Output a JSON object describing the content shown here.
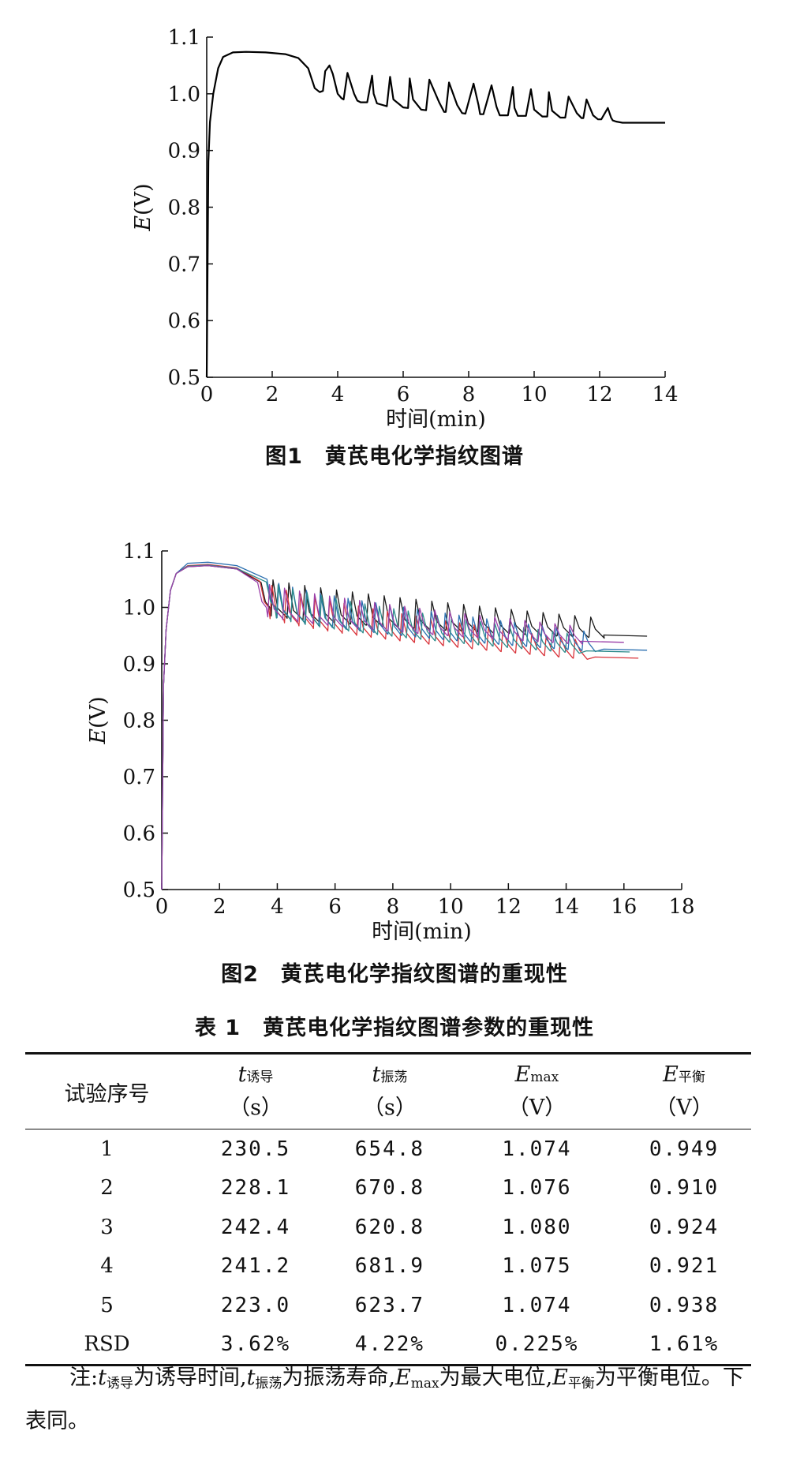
{
  "chart_data": [
    {
      "type": "line",
      "title": "图1　黄芪电化学指纹图谱",
      "xlabel": "时间(min)",
      "ylabel": "E(V)",
      "xlim": [
        0,
        14
      ],
      "ylim": [
        0.5,
        1.1
      ],
      "xticks": [
        "0",
        "2",
        "4",
        "6",
        "8",
        "10",
        "12",
        "14"
      ],
      "yticks": [
        "0.5",
        "0.6",
        "0.7",
        "0.8",
        "0.9",
        "1.0",
        "1.1"
      ],
      "series": [
        {
          "color": "#000000",
          "x": [
            0.0,
            0.05,
            0.1,
            0.2,
            0.35,
            0.5,
            0.8,
            1.2,
            1.8,
            2.4,
            2.8,
            3.1,
            3.3,
            3.45,
            3.55,
            3.62,
            3.75,
            3.85,
            4.0,
            4.12,
            4.18,
            4.3,
            4.5,
            4.6,
            4.7,
            4.9,
            5.05,
            5.1,
            5.2,
            5.5,
            5.6,
            5.7,
            6.0,
            6.15,
            6.2,
            6.3,
            6.55,
            6.7,
            6.8,
            7.1,
            7.25,
            7.3,
            7.4,
            7.65,
            7.8,
            7.9,
            8.15,
            8.3,
            8.35,
            8.45,
            8.7,
            8.85,
            8.95,
            9.2,
            9.35,
            9.4,
            9.5,
            9.75,
            9.9,
            10.0,
            10.25,
            10.4,
            10.45,
            10.55,
            10.8,
            10.95,
            11.05,
            11.3,
            11.45,
            11.5,
            11.6,
            11.8,
            11.95,
            12.05,
            12.25,
            12.35,
            12.4,
            12.5,
            12.7,
            12.9,
            13.2,
            14.0
          ],
          "y": [
            0.5,
            0.88,
            0.95,
            1.0,
            1.045,
            1.065,
            1.073,
            1.074,
            1.073,
            1.07,
            1.063,
            1.045,
            1.01,
            1.003,
            1.005,
            1.04,
            1.05,
            1.035,
            1.0,
            0.992,
            0.99,
            1.037,
            1.0,
            0.988,
            0.985,
            0.985,
            1.032,
            1.0,
            0.983,
            0.978,
            1.03,
            0.99,
            0.976,
            0.975,
            1.027,
            0.99,
            0.972,
            0.971,
            1.025,
            0.985,
            0.968,
            0.968,
            1.02,
            0.98,
            0.966,
            0.965,
            1.018,
            0.98,
            0.964,
            0.964,
            1.015,
            0.977,
            0.962,
            0.962,
            1.012,
            0.975,
            0.961,
            0.961,
            1.008,
            0.972,
            0.96,
            0.96,
            1.003,
            0.97,
            0.958,
            0.958,
            0.995,
            0.966,
            0.957,
            0.957,
            0.99,
            0.962,
            0.955,
            0.955,
            0.975,
            0.958,
            0.953,
            0.951,
            0.949,
            0.949,
            0.949,
            0.949
          ]
        }
      ]
    },
    {
      "type": "line",
      "title": "图2　黄芪电化学指纹图谱的重现性",
      "xlabel": "时间(min)",
      "ylabel": "E(V)",
      "xlim": [
        0,
        18
      ],
      "ylim": [
        0.5,
        1.1
      ],
      "xticks": [
        "0",
        "2",
        "4",
        "6",
        "8",
        "10",
        "12",
        "14",
        "16",
        "18"
      ],
      "yticks": [
        "0.5",
        "0.6",
        "0.7",
        "0.8",
        "0.9",
        "1.0",
        "1.1"
      ],
      "series": [
        {
          "color": "#1a1a1a",
          "induction": 3.84,
          "period": 0.55,
          "amp": 0.055,
          "end": 16.8,
          "emax": 1.074,
          "eq": 0.949
        },
        {
          "color": "#d9333a",
          "induction": 3.8,
          "period": 0.5,
          "amp": 0.05,
          "end": 16.5,
          "emax": 1.076,
          "eq": 0.91
        },
        {
          "color": "#2a6fb0",
          "induction": 4.04,
          "period": 0.48,
          "amp": 0.052,
          "end": 16.8,
          "emax": 1.08,
          "eq": 0.924
        },
        {
          "color": "#2b8a8a",
          "induction": 4.02,
          "period": 0.5,
          "amp": 0.05,
          "end": 16.2,
          "emax": 1.075,
          "eq": 0.921
        },
        {
          "color": "#9b3fa8",
          "induction": 3.72,
          "period": 0.52,
          "amp": 0.048,
          "end": 16.0,
          "emax": 1.074,
          "eq": 0.938
        }
      ]
    }
  ],
  "table": {
    "title": "表 1　黄芪电化学指纹图谱参数的重现性",
    "headers": [
      {
        "label": "试验序号"
      },
      {
        "sym": "t",
        "sub": "诱导",
        "unit": "（s）"
      },
      {
        "sym": "t",
        "sub": "振荡",
        "unit": "（s）"
      },
      {
        "sym": "E",
        "sub": "max",
        "unit": "（V）"
      },
      {
        "sym": "E",
        "sub": "平衡",
        "unit": "（V）"
      }
    ],
    "rows": [
      [
        "1",
        "230.5",
        "654.8",
        "1.074",
        "0.949"
      ],
      [
        "2",
        "228.1",
        "670.8",
        "1.076",
        "0.910"
      ],
      [
        "3",
        "242.4",
        "620.8",
        "1.080",
        "0.924"
      ],
      [
        "4",
        "241.2",
        "681.9",
        "1.075",
        "0.921"
      ],
      [
        "5",
        "223.0",
        "623.7",
        "1.074",
        "0.938"
      ],
      [
        "RSD",
        "3.62%",
        "4.22%",
        "0.225%",
        "1.61%"
      ]
    ]
  },
  "note": {
    "prefix": "注:",
    "t_sym": "t",
    "t_ind_sub": "诱导",
    "t_ind_txt": "为诱导时间,",
    "t_osc_sub": "振荡",
    "t_osc_txt": "为振荡寿命,",
    "e_sym": "E",
    "e_max_sub": "max",
    "e_max_txt": "为最大电位,",
    "e_eq_sub": "平衡",
    "e_eq_txt": "为平衡电位。下表同。"
  }
}
